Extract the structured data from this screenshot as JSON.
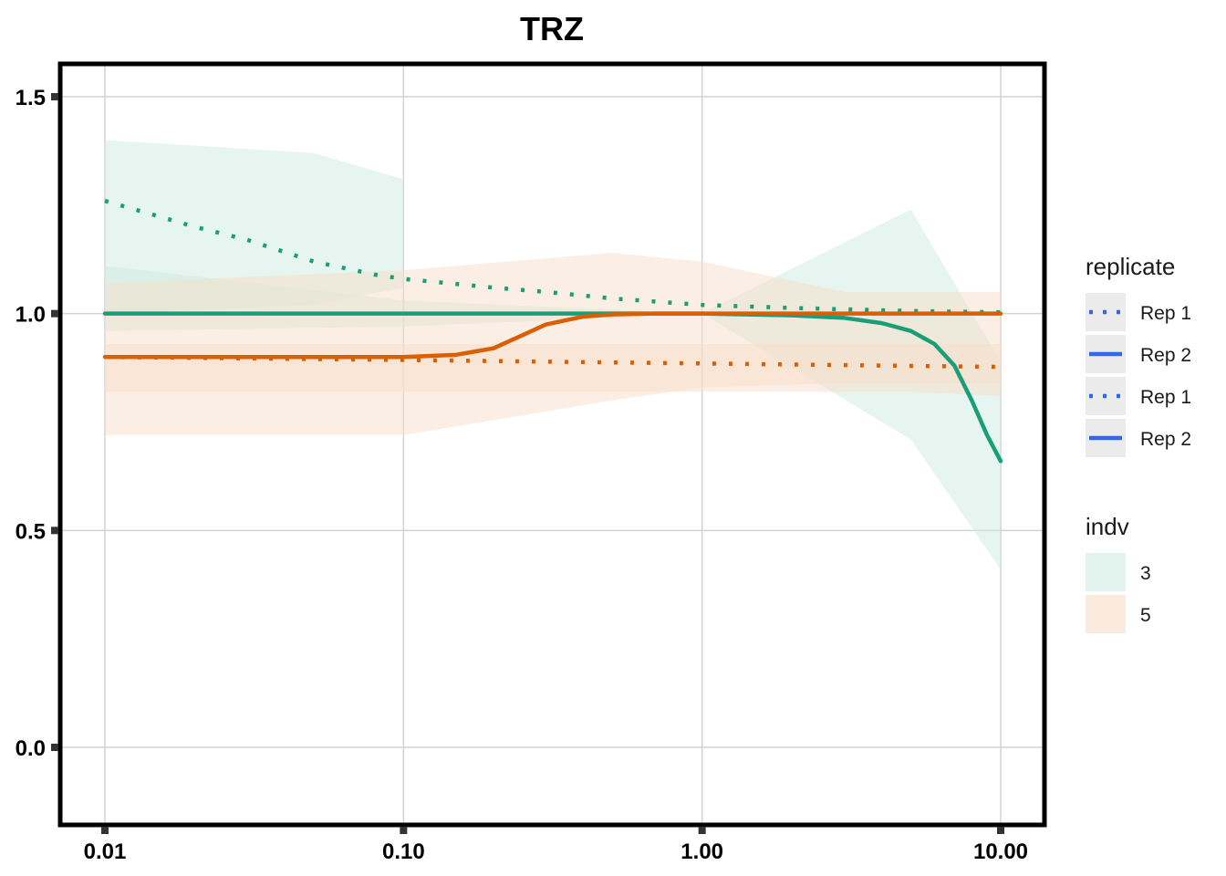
{
  "chart_data": {
    "type": "line",
    "title": "TRZ",
    "xlabel": "",
    "ylabel": "",
    "x_scale": "log10",
    "xlim": [
      0.01,
      10
    ],
    "ylim": [
      -0.17,
      1.6
    ],
    "x_ticks": [
      0.01,
      0.1,
      1,
      10
    ],
    "x_tick_labels": [
      "0.01",
      "0.10",
      "1.00",
      "10.00"
    ],
    "y_ticks": [
      0,
      0.5,
      1,
      1.5
    ],
    "y_tick_labels": [
      "0.0",
      "0.5",
      "1.0",
      "1.5"
    ],
    "grid": true,
    "legend_position": "right",
    "colors": {
      "indv_3": "#1b9e77",
      "indv_5": "#d95f02",
      "indv_3_fill": "#cdebe0",
      "indv_5_fill": "#f8ddca",
      "legend_line": "#3366e6",
      "grid": "#d3d3d3",
      "legend_key_bg": "#ebebeb"
    },
    "legends": [
      {
        "title": "replicate",
        "entries": [
          {
            "label": "Rep 1",
            "linetype": "dotted"
          },
          {
            "label": "Rep 2",
            "linetype": "solid"
          },
          {
            "label": "Rep 1",
            "linetype": "dotted"
          },
          {
            "label": "Rep 2",
            "linetype": "solid"
          }
        ]
      },
      {
        "title": "indv",
        "entries": [
          {
            "label": "3",
            "fill": "indv_3_fill"
          },
          {
            "label": "5",
            "fill": "indv_5_fill"
          }
        ]
      }
    ],
    "bands": [
      {
        "indv": "3",
        "replicate": "Rep 1",
        "x": [
          0.01,
          0.05,
          0.1
        ],
        "lower": [
          1.0,
          1.02,
          1.06
        ],
        "upper": [
          1.4,
          1.37,
          1.31
        ]
      },
      {
        "indv": "3",
        "replicate": "Rep 2",
        "x": [
          0.01,
          0.1,
          1,
          5,
          10
        ],
        "lower": [
          0.96,
          0.97,
          1.0,
          0.71,
          0.41
        ],
        "upper": [
          1.11,
          1.03,
          1.0,
          1.24,
          0.89
        ]
      },
      {
        "indv": "5",
        "replicate": "Rep 1",
        "x": [
          0.01,
          0.1,
          1,
          5,
          10
        ],
        "lower": [
          0.82,
          0.82,
          0.82,
          0.82,
          0.81
        ],
        "upper": [
          0.93,
          0.93,
          0.93,
          0.93,
          0.93
        ]
      },
      {
        "indv": "5",
        "replicate": "Rep 2",
        "x": [
          0.01,
          0.1,
          0.5,
          1,
          3,
          10
        ],
        "lower": [
          0.72,
          0.72,
          0.8,
          0.83,
          0.84,
          0.84
        ],
        "upper": [
          1.07,
          1.1,
          1.14,
          1.12,
          1.05,
          1.05
        ]
      }
    ],
    "series": [
      {
        "indv": "3",
        "replicate": "Rep 1",
        "linetype": "dotted",
        "x": [
          0.01,
          0.02,
          0.03,
          0.05,
          0.08,
          0.1,
          0.2,
          0.3,
          0.5,
          1,
          2,
          5,
          10
        ],
        "y": [
          1.26,
          1.2,
          1.17,
          1.12,
          1.09,
          1.08,
          1.06,
          1.05,
          1.035,
          1.02,
          1.013,
          1.006,
          1.003
        ]
      },
      {
        "indv": "3",
        "replicate": "Rep 2",
        "linetype": "solid",
        "x": [
          0.01,
          1,
          2,
          3,
          4,
          5,
          6,
          7,
          8,
          9,
          10
        ],
        "y": [
          1.0,
          1.0,
          0.996,
          0.99,
          0.978,
          0.96,
          0.93,
          0.88,
          0.8,
          0.72,
          0.66
        ]
      },
      {
        "indv": "5",
        "replicate": "Rep 1",
        "linetype": "dotted",
        "x": [
          0.01,
          0.1,
          1,
          10
        ],
        "y": [
          0.9,
          0.893,
          0.885,
          0.877
        ]
      },
      {
        "indv": "5",
        "replicate": "Rep 2",
        "linetype": "solid",
        "x": [
          0.01,
          0.1,
          0.15,
          0.2,
          0.25,
          0.3,
          0.4,
          0.5,
          0.7,
          1,
          10
        ],
        "y": [
          0.9,
          0.9,
          0.905,
          0.92,
          0.95,
          0.975,
          0.993,
          0.998,
          1.0,
          1.0,
          1.0
        ]
      }
    ]
  }
}
